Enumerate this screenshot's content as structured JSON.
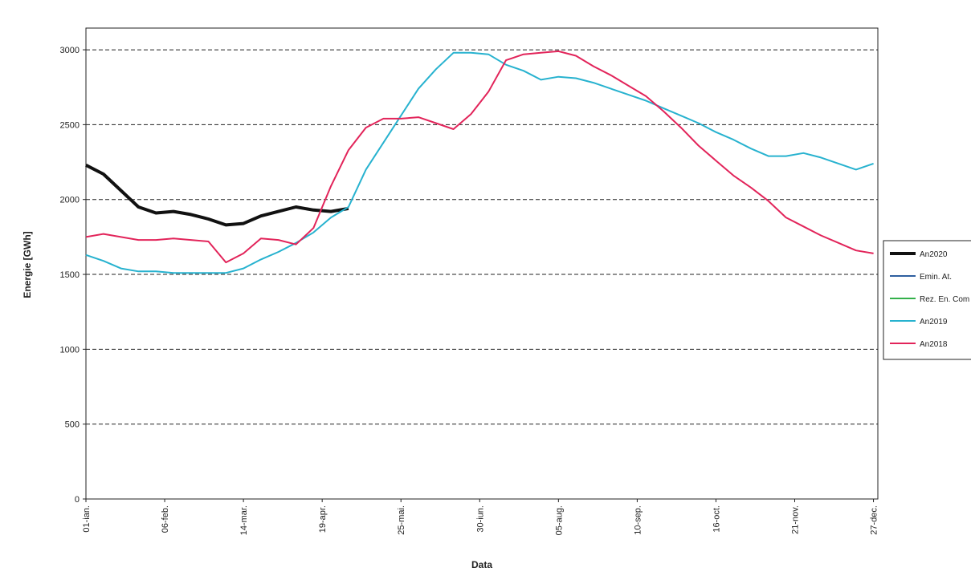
{
  "chart_data": {
    "type": "line",
    "x_label": "Data",
    "y_label": "Energie [GWh]",
    "x": [
      0,
      8,
      16,
      24,
      32,
      40,
      48,
      56,
      64,
      72,
      80,
      88,
      96,
      104,
      112,
      120,
      128,
      136,
      144,
      152,
      160,
      168,
      176,
      184,
      192,
      200,
      208,
      216,
      224,
      232,
      240,
      248,
      256,
      264,
      272,
      280,
      288,
      296,
      304,
      312,
      320,
      328,
      336,
      344,
      352,
      360
    ],
    "xlim": [
      0,
      362
    ],
    "xticks": [
      {
        "value": 0,
        "label": "01-ian."
      },
      {
        "value": 36,
        "label": "06-feb."
      },
      {
        "value": 72,
        "label": "14-mar."
      },
      {
        "value": 108,
        "label": "19-apr."
      },
      {
        "value": 144,
        "label": "25-mai."
      },
      {
        "value": 180,
        "label": "30-iun."
      },
      {
        "value": 216,
        "label": "05-aug."
      },
      {
        "value": 252,
        "label": "10-sep."
      },
      {
        "value": 288,
        "label": "16-oct."
      },
      {
        "value": 324,
        "label": "21-nov."
      },
      {
        "value": 360,
        "label": "27-dec."
      }
    ],
    "ylim": [
      0,
      3145
    ],
    "yticks": [
      0,
      500,
      1000,
      1500,
      2000,
      2500,
      3000
    ],
    "grid": true,
    "legend": "right",
    "series": [
      {
        "name": "An2020",
        "color": "#111111",
        "width": 4,
        "values": [
          2230,
          2170,
          2060,
          1950,
          1910,
          1920,
          1900,
          1870,
          1830,
          1840,
          1890,
          1920,
          1950,
          1930,
          1920,
          1940,
          null,
          null,
          null,
          null,
          null,
          null,
          null,
          null,
          null,
          null,
          null,
          null,
          null,
          null,
          null,
          null,
          null,
          null,
          null,
          null,
          null,
          null,
          null,
          null,
          null,
          null,
          null,
          null,
          null,
          null
        ]
      },
      {
        "name": "Emin. At.",
        "color": "#2f5f9f",
        "width": 2,
        "values": [
          null,
          null,
          null,
          null,
          null,
          null,
          null,
          null,
          null,
          null,
          null,
          null,
          null,
          null,
          null,
          null,
          null,
          null,
          null,
          null,
          null,
          null,
          null,
          null,
          null,
          null,
          null,
          null,
          null,
          null,
          null,
          null,
          null,
          null,
          null,
          null,
          null,
          null,
          null,
          null,
          null,
          null,
          null,
          null,
          null,
          null
        ]
      },
      {
        "name": "Rez. En. Com",
        "color": "#33b04a",
        "width": 2,
        "values": [
          null,
          null,
          null,
          null,
          null,
          null,
          null,
          null,
          null,
          null,
          null,
          null,
          null,
          null,
          null,
          null,
          null,
          null,
          null,
          null,
          null,
          null,
          null,
          null,
          null,
          null,
          null,
          null,
          null,
          null,
          null,
          null,
          null,
          null,
          null,
          null,
          null,
          null,
          null,
          null,
          null,
          null,
          null,
          null,
          null,
          null
        ]
      },
      {
        "name": "An2019",
        "color": "#27b2cf",
        "width": 2,
        "values": [
          1630,
          1590,
          1540,
          1520,
          1520,
          1510,
          1510,
          1510,
          1510,
          1540,
          1600,
          1650,
          1710,
          1780,
          1880,
          1950,
          2200,
          2380,
          2560,
          2740,
          2870,
          2980,
          2980,
          2970,
          2900,
          2860,
          2800,
          2820,
          2810,
          2780,
          2740,
          2700,
          2660,
          2610,
          2560,
          2510,
          2450,
          2400,
          2340,
          2290,
          2290,
          2310,
          2280,
          2240,
          2200,
          2240
        ]
      },
      {
        "name": "An2018",
        "color": "#e2245a",
        "width": 2,
        "values": [
          1750,
          1770,
          1750,
          1730,
          1730,
          1740,
          1730,
          1720,
          1580,
          1640,
          1740,
          1730,
          1700,
          1810,
          2090,
          2330,
          2480,
          2540,
          2540,
          2550,
          2510,
          2470,
          2570,
          2720,
          2930,
          2970,
          2980,
          2990,
          2960,
          2890,
          2830,
          2760,
          2690,
          2590,
          2480,
          2360,
          2260,
          2160,
          2080,
          1990,
          1880,
          1820,
          1760,
          1710,
          1660,
          1640
        ]
      }
    ]
  }
}
